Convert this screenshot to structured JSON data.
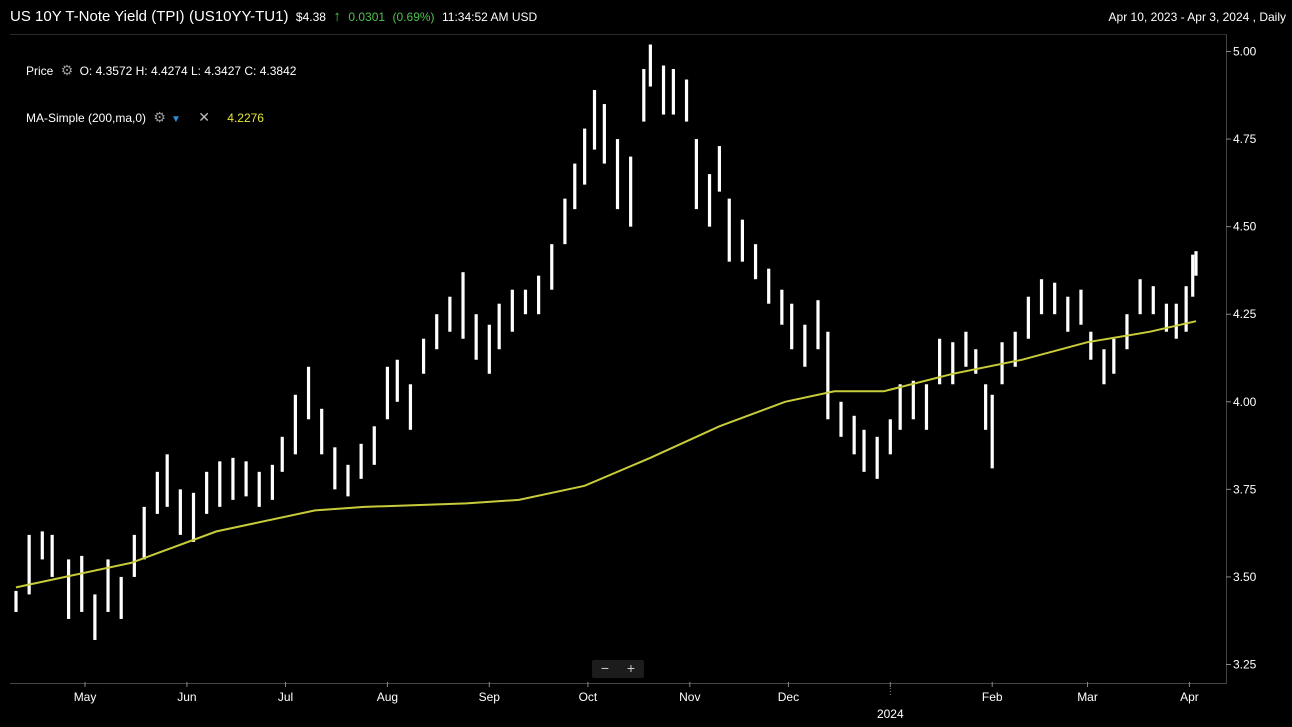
{
  "header": {
    "title": "US 10Y T-Note Yield (TPI)",
    "symbol": "(US10YY-TU1)",
    "last": "$4.38",
    "change": "0.0301",
    "change_pct": "(0.69%)",
    "time": "11:34:52 AM USD",
    "range": "Apr 10, 2023 - Apr 3, 2024 , Daily"
  },
  "legend": {
    "price_label": "Price",
    "ohlc": "O: 4.3572  H: 4.4274  L: 4.3427  C: 4.3842",
    "ma_label": "MA-Simple (200,ma,0)",
    "ma_value": "4.2276"
  },
  "zoom": {
    "minus": "−",
    "plus": "+"
  },
  "colors": {
    "bars": "#ffffff",
    "ma": "#c8cc3a",
    "background": "#000000",
    "positive": "#4fc24f"
  },
  "icons": [
    "gear-icon",
    "chevron-down-icon",
    "close-icon",
    "up-arrow-icon"
  ],
  "chart_data": {
    "type": "ohlc",
    "ylim": [
      3.2,
      5.05
    ],
    "yticks": [
      3.25,
      3.5,
      3.75,
      4.0,
      4.25,
      4.5,
      4.75,
      5.0
    ],
    "xlim": [
      "2023-04-10",
      "2024-04-03"
    ],
    "xticks": [
      {
        "date": "2023-05-01",
        "label": "May"
      },
      {
        "date": "2023-06-01",
        "label": "Jun"
      },
      {
        "date": "2023-07-01",
        "label": "Jul"
      },
      {
        "date": "2023-08-01",
        "label": "Aug"
      },
      {
        "date": "2023-09-01",
        "label": "Sep"
      },
      {
        "date": "2023-10-01",
        "label": "Oct"
      },
      {
        "date": "2023-11-01",
        "label": "Nov"
      },
      {
        "date": "2023-12-01",
        "label": "Dec"
      },
      {
        "date": "2024-01-01",
        "label": "2024"
      },
      {
        "date": "2024-02-01",
        "label": "Feb"
      },
      {
        "date": "2024-03-01",
        "label": "Mar"
      },
      {
        "date": "2024-04-01",
        "label": "Apr"
      }
    ],
    "series": [
      {
        "name": "Price",
        "points": [
          [
            "2023-04-10",
            3.4,
            3.46
          ],
          [
            "2023-04-14",
            3.45,
            3.62
          ],
          [
            "2023-04-18",
            3.55,
            3.63
          ],
          [
            "2023-04-21",
            3.5,
            3.62
          ],
          [
            "2023-04-26",
            3.38,
            3.55
          ],
          [
            "2023-04-30",
            3.4,
            3.56
          ],
          [
            "2023-05-04",
            3.32,
            3.45
          ],
          [
            "2023-05-08",
            3.4,
            3.55
          ],
          [
            "2023-05-12",
            3.38,
            3.5
          ],
          [
            "2023-05-16",
            3.5,
            3.62
          ],
          [
            "2023-05-19",
            3.55,
            3.7
          ],
          [
            "2023-05-23",
            3.68,
            3.8
          ],
          [
            "2023-05-26",
            3.7,
            3.85
          ],
          [
            "2023-05-30",
            3.62,
            3.75
          ],
          [
            "2023-06-03",
            3.6,
            3.74
          ],
          [
            "2023-06-07",
            3.68,
            3.8
          ],
          [
            "2023-06-11",
            3.7,
            3.83
          ],
          [
            "2023-06-15",
            3.72,
            3.84
          ],
          [
            "2023-06-19",
            3.73,
            3.83
          ],
          [
            "2023-06-23",
            3.7,
            3.8
          ],
          [
            "2023-06-27",
            3.72,
            3.82
          ],
          [
            "2023-06-30",
            3.8,
            3.9
          ],
          [
            "2023-07-04",
            3.85,
            4.02
          ],
          [
            "2023-07-08",
            3.95,
            4.1
          ],
          [
            "2023-07-12",
            3.85,
            3.98
          ],
          [
            "2023-07-16",
            3.75,
            3.87
          ],
          [
            "2023-07-20",
            3.73,
            3.82
          ],
          [
            "2023-07-24",
            3.78,
            3.88
          ],
          [
            "2023-07-28",
            3.82,
            3.93
          ],
          [
            "2023-08-01",
            3.95,
            4.1
          ],
          [
            "2023-08-04",
            4.0,
            4.12
          ],
          [
            "2023-08-08",
            3.92,
            4.05
          ],
          [
            "2023-08-12",
            4.08,
            4.18
          ],
          [
            "2023-08-16",
            4.15,
            4.25
          ],
          [
            "2023-08-20",
            4.2,
            4.3
          ],
          [
            "2023-08-24",
            4.18,
            4.37
          ],
          [
            "2023-08-28",
            4.12,
            4.25
          ],
          [
            "2023-09-01",
            4.08,
            4.22
          ],
          [
            "2023-09-04",
            4.15,
            4.28
          ],
          [
            "2023-09-08",
            4.2,
            4.32
          ],
          [
            "2023-09-12",
            4.25,
            4.32
          ],
          [
            "2023-09-16",
            4.25,
            4.36
          ],
          [
            "2023-09-20",
            4.32,
            4.45
          ],
          [
            "2023-09-24",
            4.45,
            4.58
          ],
          [
            "2023-09-27",
            4.55,
            4.68
          ],
          [
            "2023-09-30",
            4.62,
            4.78
          ],
          [
            "2023-10-03",
            4.72,
            4.89
          ],
          [
            "2023-10-06",
            4.68,
            4.85
          ],
          [
            "2023-10-10",
            4.55,
            4.75
          ],
          [
            "2023-10-14",
            4.5,
            4.7
          ],
          [
            "2023-10-18",
            4.8,
            4.95
          ],
          [
            "2023-10-20",
            4.9,
            5.02
          ],
          [
            "2023-10-24",
            4.82,
            4.96
          ],
          [
            "2023-10-27",
            4.82,
            4.95
          ],
          [
            "2023-10-31",
            4.8,
            4.92
          ],
          [
            "2023-11-03",
            4.55,
            4.75
          ],
          [
            "2023-11-07",
            4.5,
            4.65
          ],
          [
            "2023-11-10",
            4.6,
            4.73
          ],
          [
            "2023-11-13",
            4.4,
            4.58
          ],
          [
            "2023-11-17",
            4.4,
            4.52
          ],
          [
            "2023-11-21",
            4.35,
            4.45
          ],
          [
            "2023-11-25",
            4.28,
            4.38
          ],
          [
            "2023-11-29",
            4.22,
            4.32
          ],
          [
            "2023-12-02",
            4.15,
            4.28
          ],
          [
            "2023-12-06",
            4.1,
            4.22
          ],
          [
            "2023-12-10",
            4.15,
            4.29
          ],
          [
            "2023-12-13",
            3.95,
            4.2
          ],
          [
            "2023-12-17",
            3.9,
            4.0
          ],
          [
            "2023-12-21",
            3.85,
            3.96
          ],
          [
            "2023-12-24",
            3.8,
            3.92
          ],
          [
            "2023-12-28",
            3.78,
            3.9
          ],
          [
            "2024-01-01",
            3.85,
            3.95
          ],
          [
            "2024-01-04",
            3.92,
            4.05
          ],
          [
            "2024-01-08",
            3.95,
            4.06
          ],
          [
            "2024-01-12",
            3.92,
            4.05
          ],
          [
            "2024-01-16",
            4.05,
            4.18
          ],
          [
            "2024-01-20",
            4.05,
            4.17
          ],
          [
            "2024-01-24",
            4.1,
            4.2
          ],
          [
            "2024-01-27",
            4.08,
            4.15
          ],
          [
            "2024-01-30",
            3.92,
            4.05
          ],
          [
            "2024-02-01",
            3.81,
            4.02
          ],
          [
            "2024-02-04",
            4.05,
            4.17
          ],
          [
            "2024-02-08",
            4.1,
            4.2
          ],
          [
            "2024-02-12",
            4.18,
            4.3
          ],
          [
            "2024-02-16",
            4.25,
            4.35
          ],
          [
            "2024-02-20",
            4.25,
            4.34
          ],
          [
            "2024-02-24",
            4.2,
            4.3
          ],
          [
            "2024-02-28",
            4.22,
            4.32
          ],
          [
            "2024-03-02",
            4.12,
            4.2
          ],
          [
            "2024-03-06",
            4.05,
            4.15
          ],
          [
            "2024-03-09",
            4.08,
            4.18
          ],
          [
            "2024-03-13",
            4.15,
            4.25
          ],
          [
            "2024-03-17",
            4.25,
            4.35
          ],
          [
            "2024-03-21",
            4.25,
            4.33
          ],
          [
            "2024-03-25",
            4.2,
            4.28
          ],
          [
            "2024-03-28",
            4.18,
            4.28
          ],
          [
            "2024-03-31",
            4.2,
            4.33
          ],
          [
            "2024-04-02",
            4.3,
            4.42
          ],
          [
            "2024-04-03",
            4.36,
            4.43
          ]
        ]
      },
      {
        "name": "MA-Simple (200,ma,0)",
        "points": [
          [
            "2023-04-10",
            3.47
          ],
          [
            "2023-05-15",
            3.54
          ],
          [
            "2023-06-10",
            3.63
          ],
          [
            "2023-07-10",
            3.69
          ],
          [
            "2023-07-25",
            3.7
          ],
          [
            "2023-08-25",
            3.71
          ],
          [
            "2023-09-10",
            3.72
          ],
          [
            "2023-09-30",
            3.76
          ],
          [
            "2023-10-20",
            3.84
          ],
          [
            "2023-11-10",
            3.93
          ],
          [
            "2023-11-30",
            4.0
          ],
          [
            "2023-12-15",
            4.03
          ],
          [
            "2023-12-30",
            4.03
          ],
          [
            "2024-01-20",
            4.08
          ],
          [
            "2024-02-10",
            4.12
          ],
          [
            "2024-03-01",
            4.17
          ],
          [
            "2024-03-20",
            4.2
          ],
          [
            "2024-04-03",
            4.23
          ]
        ]
      }
    ]
  }
}
